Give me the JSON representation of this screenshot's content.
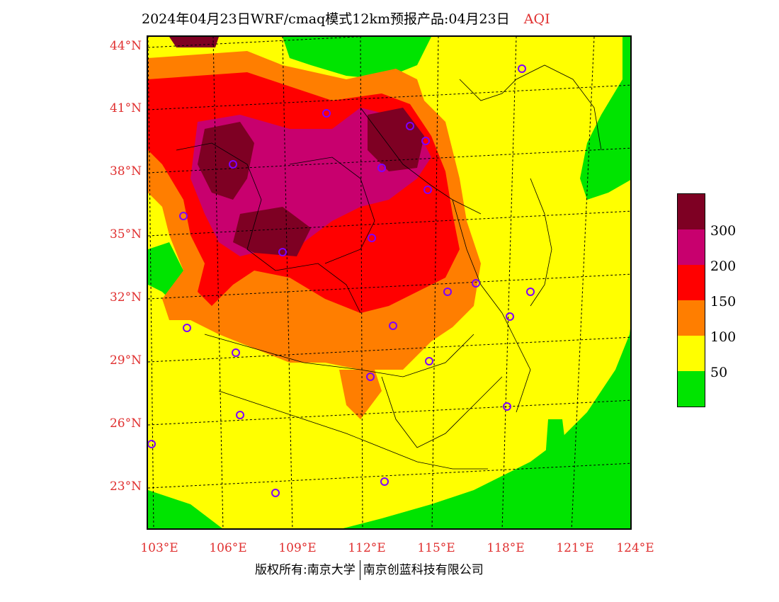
{
  "title": {
    "text": "2024年04月23日WRF/cmaq模式12km预报产品:04月23日",
    "variable": "AQI"
  },
  "colors": {
    "label_red": "#e03030",
    "good": "#00e400",
    "moderate": "#ffff00",
    "usg": "#ff7e00",
    "unhealthy": "#ff0000",
    "very_unhealthy": "#c8006e",
    "hazardous": "#7e0023",
    "city_marker": "#7f00ff"
  },
  "lat_labels": [
    "44°N",
    "41°N",
    "38°N",
    "35°N",
    "32°N",
    "29°N",
    "26°N",
    "23°N"
  ],
  "lon_labels": [
    "103°E",
    "106°E",
    "109°E",
    "112°E",
    "115°E",
    "118°E",
    "121°E",
    "124°E"
  ],
  "legend": {
    "labels": [
      "300",
      "200",
      "150",
      "100",
      "50"
    ],
    "bins": [
      {
        "color": "#7e0023"
      },
      {
        "color": "#c8006e"
      },
      {
        "color": "#ff0000"
      },
      {
        "color": "#ff7e00"
      },
      {
        "color": "#ffff00"
      },
      {
        "color": "#00e400"
      }
    ]
  },
  "footer": {
    "left": "版权所有:南京大学",
    "right": "南京创蓝科技有限公司"
  }
}
